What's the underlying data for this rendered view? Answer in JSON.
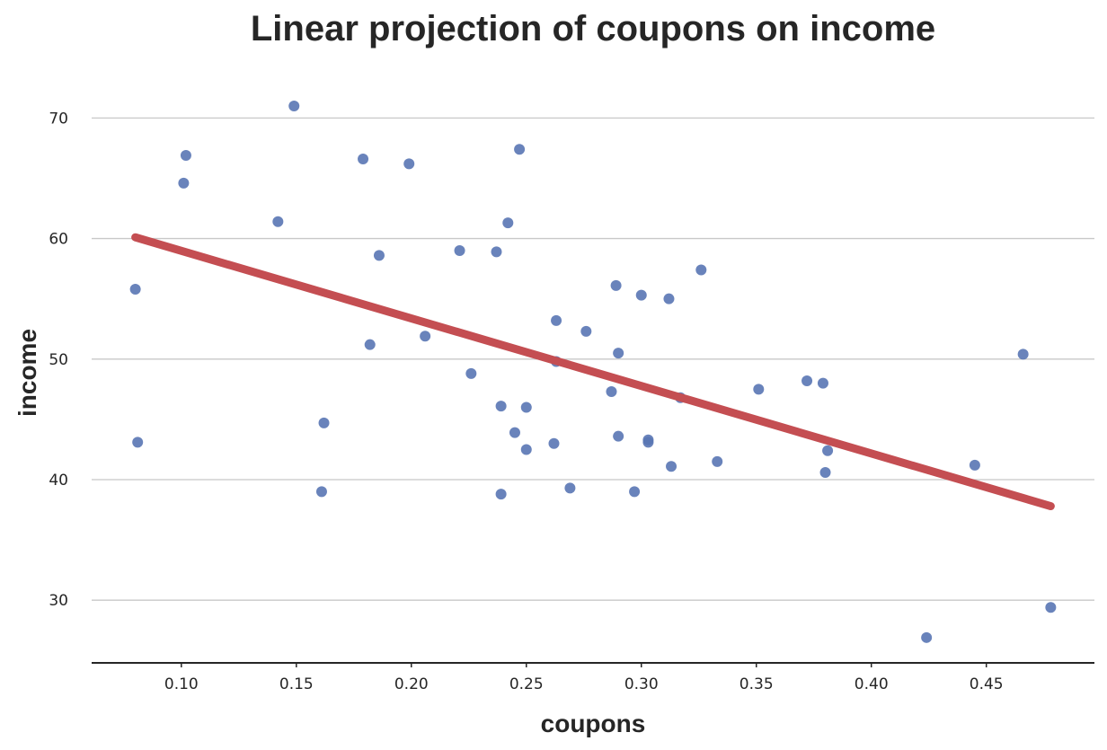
{
  "chart_data": {
    "type": "scatter",
    "title": "Linear projection of coupons on income",
    "xlabel": "coupons",
    "ylabel": "income",
    "xlim": [
      0.061,
      0.497
    ],
    "ylim": [
      24.8,
      74.2
    ],
    "xticks": [
      0.1,
      0.15,
      0.2,
      0.25,
      0.3,
      0.35,
      0.4,
      0.45
    ],
    "xtick_labels": [
      "0.10",
      "0.15",
      "0.20",
      "0.25",
      "0.30",
      "0.35",
      "0.40",
      "0.45"
    ],
    "yticks": [
      30,
      40,
      50,
      60,
      70
    ],
    "ytick_labels": [
      "30",
      "40",
      "50",
      "60",
      "70"
    ],
    "grid": "horizontal",
    "point_color": "#5975b4",
    "line_color": "#c44e52",
    "points": [
      {
        "x": 0.08,
        "y": 55.8
      },
      {
        "x": 0.081,
        "y": 43.1
      },
      {
        "x": 0.101,
        "y": 64.6
      },
      {
        "x": 0.102,
        "y": 66.9
      },
      {
        "x": 0.142,
        "y": 61.4
      },
      {
        "x": 0.149,
        "y": 71.0
      },
      {
        "x": 0.161,
        "y": 39.0
      },
      {
        "x": 0.162,
        "y": 44.7
      },
      {
        "x": 0.179,
        "y": 66.6
      },
      {
        "x": 0.182,
        "y": 51.2
      },
      {
        "x": 0.186,
        "y": 58.6
      },
      {
        "x": 0.199,
        "y": 66.2
      },
      {
        "x": 0.206,
        "y": 51.9
      },
      {
        "x": 0.221,
        "y": 59.0
      },
      {
        "x": 0.226,
        "y": 48.8
      },
      {
        "x": 0.237,
        "y": 58.9
      },
      {
        "x": 0.239,
        "y": 46.1
      },
      {
        "x": 0.239,
        "y": 38.8
      },
      {
        "x": 0.242,
        "y": 61.3
      },
      {
        "x": 0.245,
        "y": 43.9
      },
      {
        "x": 0.247,
        "y": 67.4
      },
      {
        "x": 0.25,
        "y": 46.0
      },
      {
        "x": 0.25,
        "y": 42.5
      },
      {
        "x": 0.262,
        "y": 43.0
      },
      {
        "x": 0.263,
        "y": 53.2
      },
      {
        "x": 0.263,
        "y": 49.8
      },
      {
        "x": 0.269,
        "y": 39.3
      },
      {
        "x": 0.276,
        "y": 52.3
      },
      {
        "x": 0.287,
        "y": 47.3
      },
      {
        "x": 0.289,
        "y": 56.1
      },
      {
        "x": 0.29,
        "y": 50.5
      },
      {
        "x": 0.29,
        "y": 43.6
      },
      {
        "x": 0.297,
        "y": 39.0
      },
      {
        "x": 0.3,
        "y": 55.3
      },
      {
        "x": 0.303,
        "y": 43.3
      },
      {
        "x": 0.303,
        "y": 43.1
      },
      {
        "x": 0.312,
        "y": 55.0
      },
      {
        "x": 0.313,
        "y": 41.1
      },
      {
        "x": 0.317,
        "y": 46.8
      },
      {
        "x": 0.326,
        "y": 57.4
      },
      {
        "x": 0.333,
        "y": 41.5
      },
      {
        "x": 0.351,
        "y": 47.5
      },
      {
        "x": 0.372,
        "y": 48.2
      },
      {
        "x": 0.379,
        "y": 48.0
      },
      {
        "x": 0.38,
        "y": 40.6
      },
      {
        "x": 0.381,
        "y": 42.4
      },
      {
        "x": 0.424,
        "y": 26.9
      },
      {
        "x": 0.445,
        "y": 41.2
      },
      {
        "x": 0.466,
        "y": 50.4
      },
      {
        "x": 0.478,
        "y": 29.4
      }
    ],
    "regression_line": {
      "x": [
        0.08,
        0.478
      ],
      "y": [
        60.1,
        37.8
      ]
    }
  }
}
